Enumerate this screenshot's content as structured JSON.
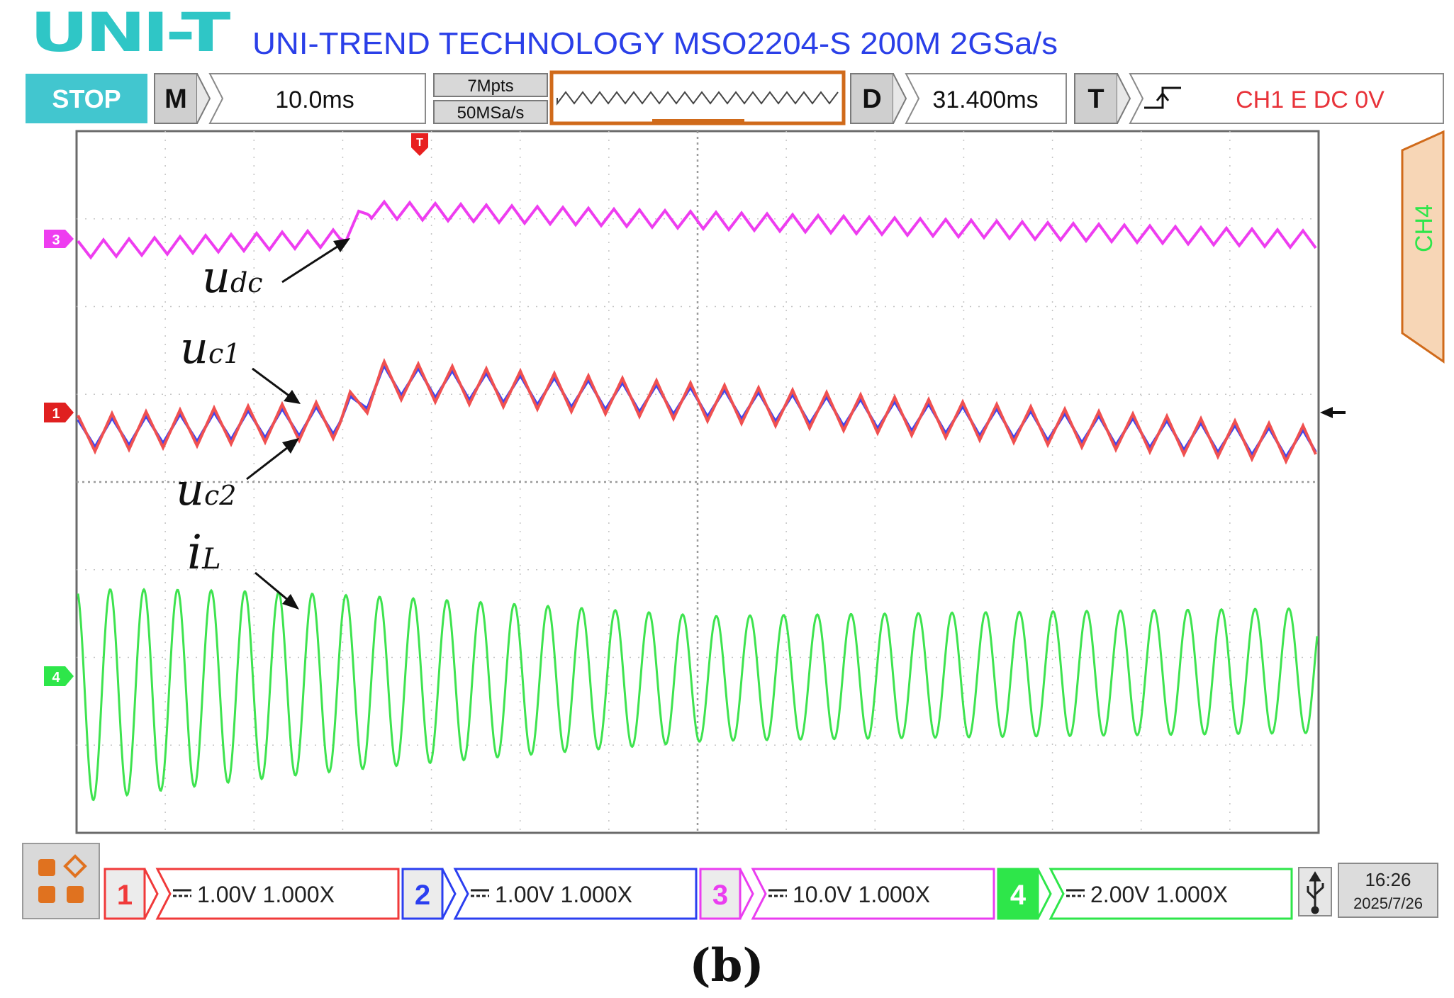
{
  "header": {
    "brand": "UNI-T",
    "model": "UNI-TREND TECHNOLOGY MSO2204-S 200M 2GSa/s"
  },
  "toolbar": {
    "run_state": "STOP",
    "timebase": {
      "key": "M",
      "value": "10.0ms"
    },
    "acquisition": {
      "memory": "7Mpts",
      "sample_rate": "50MSa/s"
    },
    "delay": {
      "key": "D",
      "value": "31.400ms"
    },
    "trigger": {
      "key": "T",
      "edge_icon": "rising-edge-icon",
      "setting": "CH1 E DC 0V"
    }
  },
  "side_panel": {
    "label": "CH4"
  },
  "markers": {
    "trigger": "T",
    "ch1": "1",
    "ch3": "3",
    "ch4": "4"
  },
  "annotations": {
    "udc": {
      "base": "u",
      "sub": "dc"
    },
    "uc1": {
      "base": "u",
      "sub": "c1"
    },
    "uc2": {
      "base": "u",
      "sub": "c2"
    },
    "iL": {
      "base": "i",
      "sub": "L"
    }
  },
  "channels": [
    {
      "num": "1",
      "coupling_icon": "dc-coupling-icon",
      "scale": "1.00V",
      "probe": "1.000X",
      "color": "#f03a3a"
    },
    {
      "num": "2",
      "coupling_icon": "dc-coupling-icon",
      "scale": "1.00V",
      "probe": "1.000X",
      "color": "#2b3ff0"
    },
    {
      "num": "3",
      "coupling_icon": "dc-coupling-icon",
      "scale": "10.0V",
      "probe": "1.000X",
      "color": "#ea3df0"
    },
    {
      "num": "4",
      "coupling_icon": "dc-coupling-icon",
      "scale": "2.00V",
      "probe": "1.000X",
      "color": "#2ee64a"
    }
  ],
  "status": {
    "usb_icon": "usb-icon",
    "time": "16:26",
    "date": "2025/7/26"
  },
  "caption": "(b)",
  "colors": {
    "brand": "#2fc6c6",
    "title": "#2a3fe8",
    "stop_bg": "#42c6cf",
    "trigger_text": "#e8333a",
    "acq_frame": "#d06a1a",
    "side_panel": "#f7d6b6",
    "ch1": "#f05050",
    "ch2": "#3d45f0",
    "ch3": "#ee3df0",
    "ch4": "#3ee34f"
  }
}
